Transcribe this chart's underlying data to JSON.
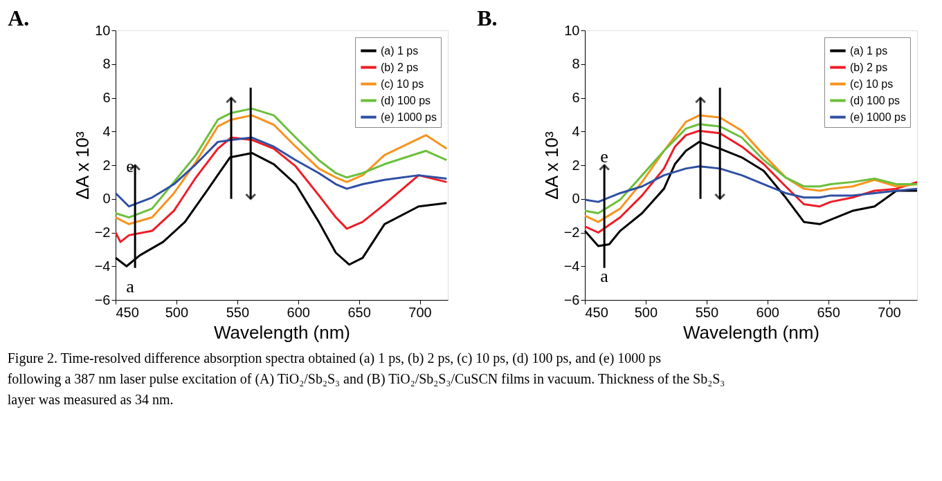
{
  "chart_data": [
    {
      "type": "line",
      "title": "A.",
      "xlabel": "Wavelength (nm)",
      "ylabel": "ΔA x 10³",
      "xlim": [
        450,
        723
      ],
      "ylim": [
        -6,
        10
      ],
      "xticks": [
        450,
        500,
        550,
        600,
        650,
        700
      ],
      "yticks": [
        -6,
        -4,
        -2,
        0,
        2,
        4,
        6,
        8,
        10
      ],
      "grid": false,
      "legend": "top right",
      "line_style": "solid",
      "marker": "none",
      "annotations": [
        "e",
        "a",
        "Figure 2. Time-resolved difference absorption spectra obtained (a) 1 ps, (b) 2 ps, (c) 10 ps, (d) 100 ps, and (e) 1000 ps following a 387 nm laser pulse excitation of (A) TiO₂/Sb₂S₃ and (B) TiO₂/Sb₂S₃/CuSCN films in vacuum. Thickness of the Sb₂S₃ layer was measured as 34 nm."
      ],
      "series": [
        {
          "name": "(a) 1 ps",
          "color": "#000000",
          "x": [
            450,
            459,
            470,
            489,
            507,
            525,
            544,
            562,
            580,
            598,
            617,
            631,
            642,
            653,
            671,
            699,
            722
          ],
          "values": [
            -3.5,
            -4.0,
            -3.35,
            -2.56,
            -1.37,
            0.48,
            2.46,
            2.72,
            2.06,
            0.87,
            -1.37,
            -3.2,
            -3.9,
            -3.5,
            -1.5,
            -0.45,
            -0.25
          ]
        },
        {
          "name": "(b) 2 ps",
          "color": "#ee1c25",
          "x": [
            450,
            454,
            461,
            480,
            498,
            516,
            534,
            545,
            562,
            580,
            598,
            617,
            631,
            640,
            653,
            671,
            699,
            722
          ],
          "values": [
            -2.0,
            -2.56,
            -2.16,
            -1.9,
            -0.7,
            1.27,
            2.98,
            3.64,
            3.5,
            2.98,
            1.93,
            0.21,
            -1.1,
            -1.77,
            -1.37,
            -0.32,
            1.4,
            1.0
          ]
        },
        {
          "name": "(c) 10 ps",
          "color": "#f7931e",
          "x": [
            450,
            461,
            480,
            498,
            516,
            534,
            545,
            562,
            580,
            598,
            617,
            631,
            640,
            653,
            671,
            705,
            722
          ],
          "values": [
            -1.1,
            -1.5,
            -1.1,
            0.34,
            2.19,
            4.3,
            4.7,
            4.96,
            4.4,
            3.1,
            1.8,
            1.27,
            1.0,
            1.4,
            2.6,
            3.78,
            2.98
          ]
        },
        {
          "name": "(d) 100 ps",
          "color": "#6cbf3c",
          "x": [
            450,
            461,
            480,
            498,
            516,
            534,
            545,
            562,
            580,
            598,
            617,
            631,
            640,
            653,
            671,
            705,
            722
          ],
          "values": [
            -0.85,
            -1.1,
            -0.58,
            1.0,
            2.6,
            4.7,
            5.1,
            5.36,
            4.96,
            3.64,
            2.3,
            1.53,
            1.27,
            1.53,
            2.06,
            2.85,
            2.3
          ]
        },
        {
          "name": "(e) 1000 ps",
          "color": "#2e4fa3",
          "x": [
            450,
            461,
            480,
            498,
            516,
            534,
            545,
            562,
            580,
            598,
            617,
            631,
            640,
            653,
            671,
            699,
            722
          ],
          "values": [
            0.34,
            -0.45,
            0.08,
            0.87,
            2.06,
            3.38,
            3.5,
            3.64,
            3.1,
            2.3,
            1.53,
            0.87,
            0.6,
            0.87,
            1.13,
            1.4,
            1.2
          ]
        }
      ]
    },
    {
      "type": "line",
      "title": "B.",
      "xlabel": "Wavelength (nm)",
      "ylabel": "ΔA x 10³",
      "xlim": [
        450,
        723
      ],
      "ylim": [
        -6,
        10
      ],
      "xticks": [
        450,
        500,
        550,
        600,
        650,
        700
      ],
      "yticks": [
        -6,
        -4,
        -2,
        0,
        2,
        4,
        6,
        8,
        10
      ],
      "grid": false,
      "legend": "top right",
      "line_style": "solid",
      "marker": "none",
      "annotations": [
        "e",
        "a"
      ],
      "series": [
        {
          "name": "(a) 1 ps",
          "color": "#000000",
          "x": [
            450,
            461,
            470,
            479,
            497,
            515,
            524,
            533,
            544,
            561,
            579,
            597,
            615,
            630,
            643,
            652,
            670,
            688,
            706,
            723
          ],
          "values": [
            -1.9,
            -2.8,
            -2.7,
            -1.9,
            -0.85,
            0.6,
            2.06,
            2.85,
            3.38,
            2.98,
            2.46,
            1.66,
            0.08,
            -1.37,
            -1.5,
            -1.24,
            -0.71,
            -0.45,
            0.48,
            0.48
          ]
        },
        {
          "name": "(b) 2 ps",
          "color": "#ee1c25",
          "x": [
            450,
            461,
            479,
            497,
            515,
            524,
            533,
            544,
            561,
            579,
            597,
            615,
            630,
            643,
            652,
            670,
            688,
            706,
            723
          ],
          "values": [
            -1.64,
            -2.0,
            -1.1,
            0.2,
            1.8,
            3.1,
            3.78,
            4.04,
            3.9,
            3.1,
            2.06,
            0.74,
            -0.32,
            -0.45,
            -0.18,
            0.08,
            0.48,
            0.6,
            1.0
          ]
        },
        {
          "name": "(c) 10 ps",
          "color": "#f7931e",
          "x": [
            450,
            461,
            479,
            497,
            515,
            533,
            544,
            561,
            579,
            597,
            615,
            630,
            643,
            652,
            670,
            688,
            706,
            723
          ],
          "values": [
            -1.0,
            -1.37,
            -0.58,
            1.0,
            2.85,
            4.57,
            4.96,
            4.83,
            4.04,
            2.6,
            1.27,
            0.6,
            0.48,
            0.6,
            0.74,
            1.13,
            0.74,
            0.87
          ]
        },
        {
          "name": "(d) 100 ps",
          "color": "#6cbf3c",
          "x": [
            450,
            461,
            479,
            497,
            515,
            533,
            544,
            561,
            579,
            597,
            615,
            630,
            643,
            652,
            670,
            688,
            706,
            723
          ],
          "values": [
            -0.71,
            -0.85,
            -0.05,
            1.4,
            2.85,
            4.17,
            4.43,
            4.3,
            3.64,
            2.3,
            1.27,
            0.74,
            0.74,
            0.87,
            1.0,
            1.2,
            0.87,
            0.87
          ]
        },
        {
          "name": "(e) 1000 ps",
          "color": "#2e4fa3",
          "x": [
            450,
            461,
            479,
            497,
            515,
            533,
            544,
            561,
            579,
            597,
            615,
            630,
            643,
            652,
            670,
            688,
            706,
            723
          ],
          "values": [
            -0.05,
            -0.18,
            0.34,
            0.74,
            1.4,
            1.8,
            1.93,
            1.8,
            1.4,
            0.87,
            0.34,
            0.08,
            0.08,
            0.2,
            0.2,
            0.34,
            0.48,
            0.6
          ]
        }
      ]
    }
  ]
}
